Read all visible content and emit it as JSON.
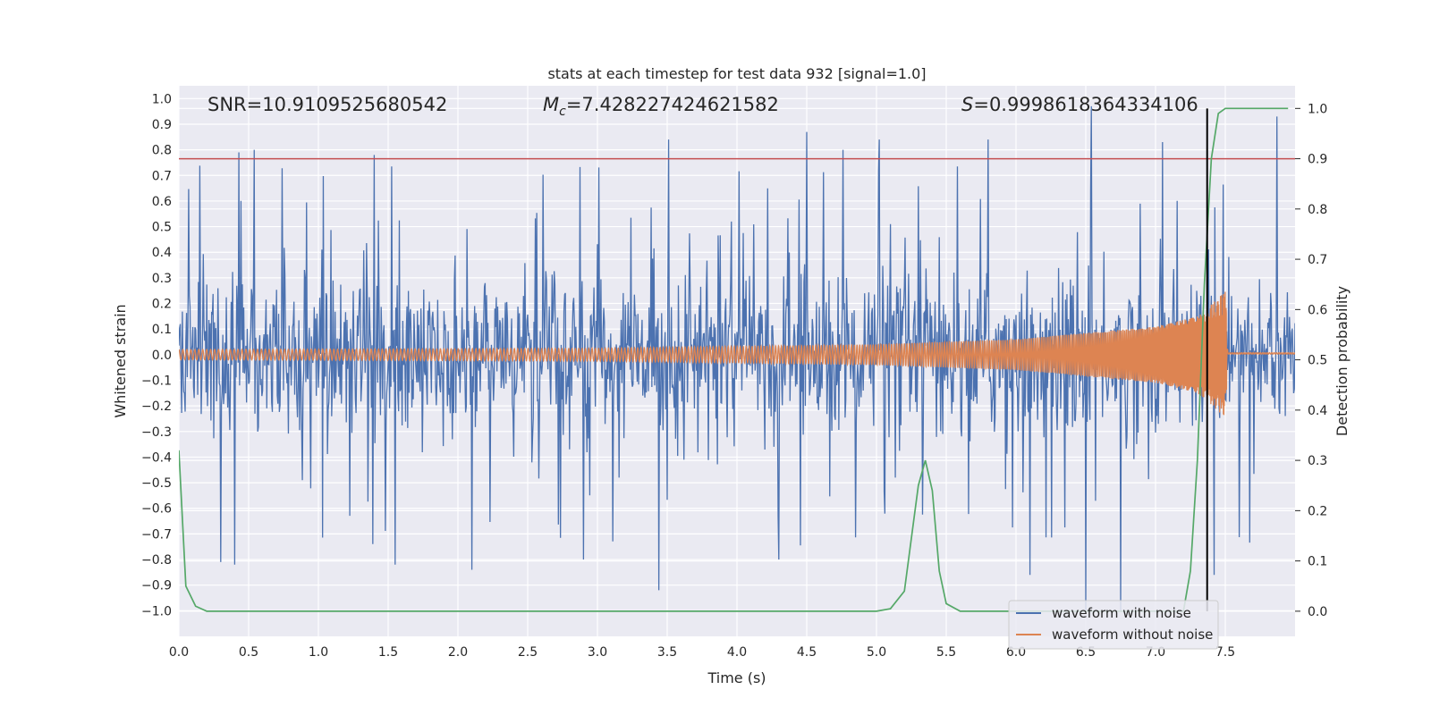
{
  "chart_data": {
    "type": "line",
    "title": "stats at each timestep for test data 932 [signal=1.0]",
    "xlabel": "Time (s)",
    "ylabel": "Whitened strain",
    "y2label": "Detection probability",
    "xlim": [
      0.0,
      8.0
    ],
    "ylim": [
      -1.1,
      1.05
    ],
    "y2lim": [
      -0.05,
      1.045
    ],
    "x_ticks": [
      0.0,
      0.5,
      1.0,
      1.5,
      2.0,
      2.5,
      3.0,
      3.5,
      4.0,
      4.5,
      5.0,
      5.5,
      6.0,
      6.5,
      7.0,
      7.5
    ],
    "y_ticks": [
      1.0,
      0.9,
      0.8,
      0.7,
      0.6,
      0.5,
      0.4,
      0.3,
      0.2,
      0.1,
      0.0,
      -0.1,
      -0.2,
      -0.3,
      -0.4,
      -0.5,
      -0.6,
      -0.7,
      -0.8,
      -0.9,
      -1.0
    ],
    "y2_ticks": [
      1.0,
      0.9,
      0.8,
      0.7,
      0.6,
      0.5,
      0.4,
      0.3,
      0.2,
      0.1,
      0.0
    ],
    "annotations": {
      "snr": "SNR=10.9109525680542",
      "mc_symbol": "M",
      "mc_sub": "c",
      "mc_value": "=7.428227424621582",
      "s_symbol": "S",
      "s_value": "=0.9998618364334106"
    },
    "threshold_line": {
      "y2": 0.9,
      "color": "#c44e52"
    },
    "event_time": 7.37,
    "event_line_color": "#000000",
    "series": [
      {
        "name": "waveform with noise",
        "color": "#4c72b0",
        "envelope": "noise band roughly -0.4 to 0.4 with spikes to about ±0.9",
        "notable_spikes": [
          [
            0.43,
            0.79
          ],
          [
            0.54,
            0.8
          ],
          [
            0.4,
            -0.82
          ],
          [
            0.3,
            -0.81
          ],
          [
            1.4,
            0.78
          ],
          [
            1.55,
            -0.82
          ],
          [
            2.1,
            -0.84
          ],
          [
            2.9,
            -0.8
          ],
          [
            3.44,
            -0.92
          ],
          [
            3.51,
            0.84
          ],
          [
            4.3,
            -0.8
          ],
          [
            4.5,
            0.87
          ],
          [
            4.76,
            0.8
          ],
          [
            5.02,
            0.84
          ],
          [
            5.8,
            0.84
          ],
          [
            6.1,
            -0.86
          ],
          [
            6.54,
            0.97
          ],
          [
            6.5,
            -1.0
          ],
          [
            6.75,
            -1.0
          ],
          [
            7.05,
            0.83
          ],
          [
            7.42,
            -0.86
          ],
          [
            7.87,
            0.93
          ]
        ]
      },
      {
        "name": "waveform without noise",
        "color": "#dd8452",
        "description": "chirp: oscillation amplitude ~0.02 at t=0 growing to ~0.25 at merger t≈7.5, then flat near 0.01",
        "amplitude_points": [
          [
            0.0,
            0.02
          ],
          [
            3.0,
            0.025
          ],
          [
            5.0,
            0.04
          ],
          [
            6.0,
            0.06
          ],
          [
            7.0,
            0.11
          ],
          [
            7.3,
            0.15
          ],
          [
            7.45,
            0.22
          ],
          [
            7.5,
            0.25
          ],
          [
            7.52,
            0.01
          ],
          [
            8.0,
            0.01
          ]
        ]
      },
      {
        "name": "detection probability",
        "axis": "right",
        "color": "#55a868",
        "x": [
          0.0,
          0.05,
          0.12,
          0.2,
          0.3,
          5.0,
          5.1,
          5.2,
          5.3,
          5.35,
          5.4,
          5.45,
          5.5,
          5.6,
          5.7,
          7.2,
          7.25,
          7.3,
          7.35,
          7.4,
          7.45,
          7.5,
          7.95
        ],
        "values": [
          0.32,
          0.05,
          0.01,
          0.0,
          0.0,
          0.0,
          0.005,
          0.04,
          0.25,
          0.3,
          0.24,
          0.08,
          0.015,
          0.0,
          0.0,
          0.0,
          0.08,
          0.3,
          0.65,
          0.9,
          0.99,
          1.0,
          1.0
        ]
      }
    ],
    "legend": {
      "position": "lower right",
      "entries": [
        {
          "label": "waveform with noise",
          "color": "#4c72b0"
        },
        {
          "label": "waveform without noise",
          "color": "#dd8452"
        }
      ]
    }
  }
}
